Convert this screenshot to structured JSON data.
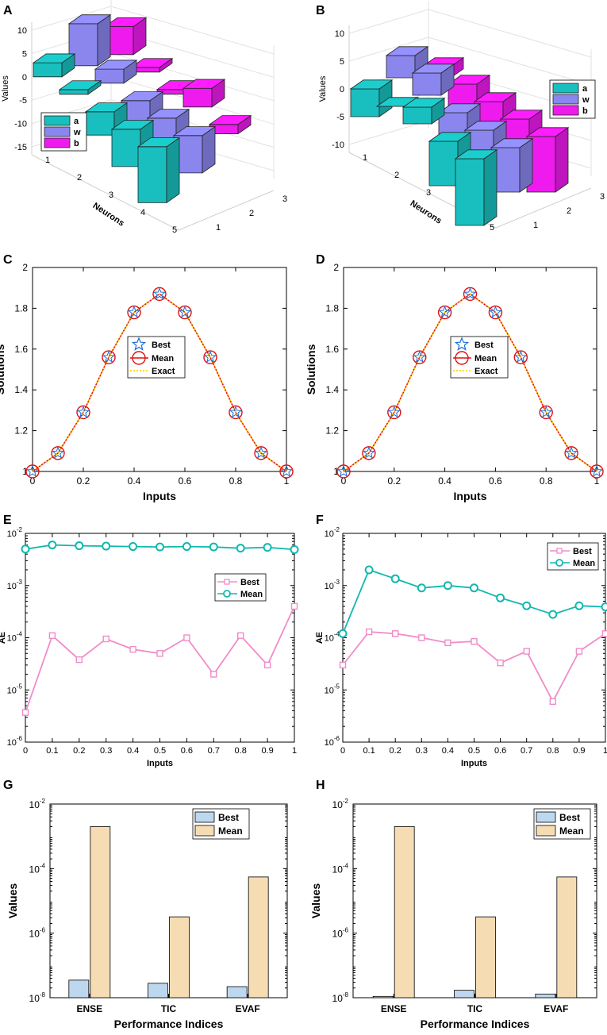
{
  "panels": [
    {
      "label": "A",
      "type": "bar3d",
      "zlabel": "Values",
      "ylabel": "Neurons",
      "zticks": [
        "10",
        "5",
        "0",
        "-5",
        "-10",
        "-15"
      ],
      "yticks": [
        "1",
        "2",
        "3",
        "4",
        "5"
      ],
      "xticks": [
        "1",
        "2",
        "3"
      ],
      "legend": [
        "a",
        "w",
        "b"
      ],
      "colors": [
        "#19bfbf",
        "#8a86ee",
        "#ee1aee"
      ],
      "data": {
        "a": [
          3,
          1,
          -5,
          -8,
          -12
        ],
        "w": [
          9,
          3,
          -9,
          -7,
          -8
        ],
        "b": [
          6,
          1,
          -1,
          4,
          -2
        ]
      }
    },
    {
      "label": "B",
      "type": "bar3d",
      "zlabel": "Values",
      "ylabel": "Neurons",
      "zticks": [
        "10",
        "5",
        "0",
        "-5",
        "-10"
      ],
      "yticks": [
        "1",
        "2",
        "3",
        "4",
        "5"
      ],
      "xticks": [
        "1",
        "2",
        "3"
      ],
      "legend": [
        "a",
        "w",
        "b"
      ],
      "colors": [
        "#19bfbf",
        "#8a86ee",
        "#ee1aee"
      ],
      "data": {
        "a": [
          -5,
          0,
          3,
          -8,
          -12
        ],
        "w": [
          4,
          4,
          -5,
          -7,
          -8
        ],
        "b": [
          -2,
          -4,
          -6,
          -8,
          -10
        ]
      }
    },
    {
      "label": "C",
      "type": "line",
      "xlabel": "Inputs",
      "ylabel": "Solutions",
      "xlim": [
        0,
        1
      ],
      "ylim": [
        1,
        2
      ],
      "xticks": [
        "0",
        "0.2",
        "0.4",
        "0.6",
        "0.8",
        "1"
      ],
      "yticks": [
        "1",
        "1.2",
        "1.4",
        "1.6",
        "1.8",
        "2"
      ],
      "x": [
        0,
        0.1,
        0.2,
        0.3,
        0.4,
        0.5,
        0.6,
        0.7,
        0.8,
        0.9,
        1
      ],
      "y": [
        1.0,
        1.09,
        1.29,
        1.56,
        1.78,
        1.87,
        1.78,
        1.56,
        1.29,
        1.09,
        1.0
      ],
      "legend": [
        "Best",
        "Mean",
        "Exact"
      ]
    },
    {
      "label": "D",
      "type": "line",
      "xlabel": "Inputs",
      "ylabel": "Solutions",
      "xlim": [
        0,
        1
      ],
      "ylim": [
        1,
        2
      ],
      "xticks": [
        "0",
        "0.2",
        "0.4",
        "0.6",
        "0.8",
        "1"
      ],
      "yticks": [
        "1",
        "1.2",
        "1.4",
        "1.6",
        "1.8",
        "2"
      ],
      "x": [
        0,
        0.1,
        0.2,
        0.3,
        0.4,
        0.5,
        0.6,
        0.7,
        0.8,
        0.9,
        1
      ],
      "y": [
        1.0,
        1.09,
        1.29,
        1.56,
        1.78,
        1.87,
        1.78,
        1.56,
        1.29,
        1.09,
        1.0
      ],
      "legend": [
        "Best",
        "Mean",
        "Exact"
      ]
    },
    {
      "label": "E",
      "type": "log-line",
      "xlabel": "Inputs",
      "ylabel": "AE",
      "x": [
        0,
        0.1,
        0.2,
        0.3,
        0.4,
        0.5,
        0.6,
        0.7,
        0.8,
        0.9,
        1
      ],
      "xticks": [
        "0",
        "0.1",
        "0.2",
        "0.3",
        "0.4",
        "0.5",
        "0.6",
        "0.7",
        "0.8",
        "0.9",
        "1"
      ],
      "yexp": [
        -6,
        -2
      ],
      "series": [
        {
          "name": "Best",
          "values": [
            3.7e-06,
            0.00011,
            3.8e-05,
            9.5e-05,
            6e-05,
            5e-05,
            0.0001,
            2e-05,
            0.00011,
            3e-05,
            0.0004
          ]
        },
        {
          "name": "Mean",
          "values": [
            0.005,
            0.006,
            0.0058,
            0.0057,
            0.0056,
            0.0055,
            0.0056,
            0.0055,
            0.0052,
            0.0054,
            0.0049
          ]
        }
      ]
    },
    {
      "label": "F",
      "type": "log-line",
      "xlabel": "Inputs",
      "ylabel": "AE",
      "x": [
        0,
        0.1,
        0.2,
        0.3,
        0.4,
        0.5,
        0.6,
        0.7,
        0.8,
        0.9,
        1
      ],
      "xticks": [
        "0",
        "0.1",
        "0.2",
        "0.3",
        "0.4",
        "0.5",
        "0.6",
        "0.7",
        "0.8",
        "0.9",
        "1"
      ],
      "yexp": [
        -6,
        -2
      ],
      "series": [
        {
          "name": "Best",
          "values": [
            3e-05,
            0.00013,
            0.00012,
            0.0001,
            8e-05,
            8.5e-05,
            3.3e-05,
            5.5e-05,
            6e-06,
            5.5e-05,
            0.00012
          ]
        },
        {
          "name": "Mean",
          "values": [
            0.00012,
            0.002,
            0.00135,
            0.0009,
            0.001,
            0.0009,
            0.00058,
            0.00041,
            0.00028,
            0.00041,
            0.00039
          ]
        }
      ]
    },
    {
      "label": "G",
      "type": "log-bar",
      "xlabel": "Performance Indices",
      "ylabel": "Values",
      "categories": [
        "ENSE",
        "TIC",
        "EVAF"
      ],
      "yexp": [
        -8,
        -2
      ],
      "series": [
        {
          "name": "Best",
          "values": [
            3.5e-08,
            2.8e-08,
            2.2e-08
          ]
        },
        {
          "name": "Mean",
          "values": [
            0.002,
            3.2e-06,
            5.5e-05
          ]
        }
      ]
    },
    {
      "label": "H",
      "type": "log-bar",
      "xlabel": "Performance Indices",
      "ylabel": "Values",
      "categories": [
        "ENSE",
        "TIC",
        "EVAF"
      ],
      "yexp": [
        -8,
        -2
      ],
      "series": [
        {
          "name": "Best",
          "values": [
            1.1e-08,
            1.7e-08,
            1.3e-08
          ]
        },
        {
          "name": "Mean",
          "values": [
            0.002,
            3.2e-06,
            5.5e-05
          ]
        }
      ]
    }
  ],
  "chart_data": [
    {
      "type": "bar",
      "title": "A",
      "categories": [
        "1",
        "2",
        "3",
        "4",
        "5"
      ],
      "xlabel": "Neurons",
      "ylabel": "Values",
      "series": [
        {
          "name": "a",
          "values": [
            3,
            1,
            -5,
            -8,
            -12
          ]
        },
        {
          "name": "w",
          "values": [
            9,
            3,
            -9,
            -7,
            -8
          ]
        },
        {
          "name": "b",
          "values": [
            6,
            1,
            -1,
            4,
            -2
          ]
        }
      ]
    },
    {
      "type": "bar",
      "title": "B",
      "categories": [
        "1",
        "2",
        "3",
        "4",
        "5"
      ],
      "xlabel": "Neurons",
      "ylabel": "Values",
      "series": [
        {
          "name": "a",
          "values": [
            -5,
            0,
            3,
            -8,
            -12
          ]
        },
        {
          "name": "w",
          "values": [
            4,
            4,
            -5,
            -7,
            -8
          ]
        },
        {
          "name": "b",
          "values": [
            -2,
            -4,
            -6,
            -8,
            -10
          ]
        }
      ]
    },
    {
      "type": "line",
      "title": "C",
      "xlabel": "Inputs",
      "ylabel": "Solutions",
      "ylim": [
        1,
        2
      ]
    },
    {
      "type": "line",
      "title": "D",
      "xlabel": "Inputs",
      "ylabel": "Solutions",
      "ylim": [
        1,
        2
      ]
    },
    {
      "type": "line",
      "title": "E",
      "xlabel": "Inputs",
      "ylabel": "AE",
      "yscale": "log"
    },
    {
      "type": "line",
      "title": "F",
      "xlabel": "Inputs",
      "ylabel": "AE",
      "yscale": "log"
    },
    {
      "type": "bar",
      "title": "G",
      "xlabel": "Performance Indices",
      "ylabel": "Values",
      "yscale": "log"
    },
    {
      "type": "bar",
      "title": "H",
      "xlabel": "Performance Indices",
      "ylabel": "Values",
      "yscale": "log"
    }
  ]
}
